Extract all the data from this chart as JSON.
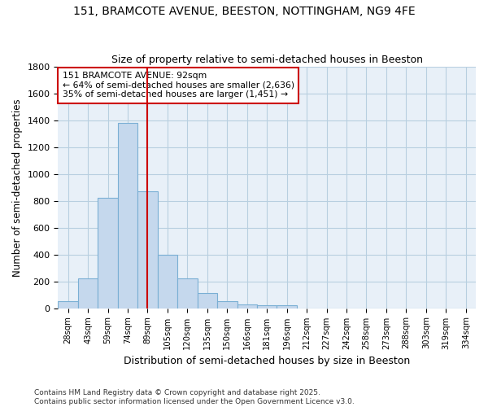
{
  "title_line1": "151, BRAMCOTE AVENUE, BEESTON, NOTTINGHAM, NG9 4FE",
  "title_line2": "Size of property relative to semi-detached houses in Beeston",
  "xlabel": "Distribution of semi-detached houses by size in Beeston",
  "ylabel": "Number of semi-detached properties",
  "categories": [
    "28sqm",
    "43sqm",
    "59sqm",
    "74sqm",
    "89sqm",
    "105sqm",
    "120sqm",
    "135sqm",
    "150sqm",
    "166sqm",
    "181sqm",
    "196sqm",
    "212sqm",
    "227sqm",
    "242sqm",
    "258sqm",
    "273sqm",
    "288sqm",
    "303sqm",
    "319sqm",
    "334sqm"
  ],
  "values": [
    50,
    225,
    820,
    1380,
    870,
    400,
    225,
    115,
    50,
    30,
    20,
    20,
    0,
    0,
    0,
    0,
    0,
    0,
    0,
    0,
    0
  ],
  "bar_color": "#c5d8ed",
  "bar_edge_color": "#7aafd4",
  "grid_color": "#b8cfe0",
  "background_color": "#e8f0f8",
  "property_label": "151 BRAMCOTE AVENUE: 92sqm",
  "pct_smaller": 64,
  "count_smaller": 2636,
  "pct_larger": 35,
  "count_larger": 1451,
  "vline_bin_index": 4,
  "vline_color": "#cc0000",
  "annotation_box_color": "#cc0000",
  "footer_line1": "Contains HM Land Registry data © Crown copyright and database right 2025.",
  "footer_line2": "Contains public sector information licensed under the Open Government Licence v3.0.",
  "ylim": [
    0,
    1800
  ],
  "yticks": [
    0,
    200,
    400,
    600,
    800,
    1000,
    1200,
    1400,
    1600,
    1800
  ]
}
